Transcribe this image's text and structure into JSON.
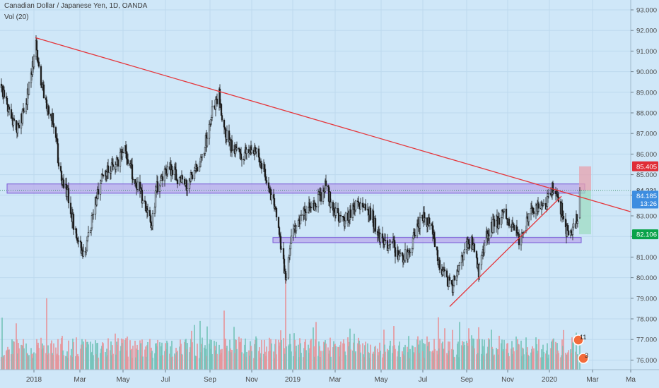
{
  "header": {
    "symbol_title": "Canadian Dollar / Japanese Yen, 1D, OANDA",
    "volume_label": "Vol (20)"
  },
  "colors": {
    "background": "#cfe7f8",
    "grid": "#bdd9ee",
    "up_candle": "#c9dff0",
    "down_candle": "#1a1a1a",
    "vol_up": "#74c3b9",
    "vol_down": "#e7959a",
    "trendline": "#e5363b",
    "zone_fill": "#b8a6ea",
    "zone_stroke": "#7a5bd6",
    "stop_zone": "#e7a2ae",
    "target_zone": "#9fdcc3",
    "price_tag_red": "#e02d36",
    "price_tag_blue": "#3d8de0",
    "price_tag_green": "#0aa34a"
  },
  "chart_data": {
    "type": "candlestick",
    "x_axis_labels": [
      "2018",
      "Mar",
      "May",
      "Jul",
      "Sep",
      "Nov",
      "2019",
      "Mar",
      "May",
      "Jul",
      "Sep",
      "Nov",
      "2020",
      "Mar",
      "Ma"
    ],
    "y_axis_labels": [
      "93.000",
      "92.000",
      "91.000",
      "90.000",
      "89.000",
      "88.000",
      "87.000",
      "86.000",
      "85.000",
      "84.000",
      "83.000",
      "82.000",
      "81.000",
      "80.000",
      "79.000",
      "78.000",
      "77.000",
      "76.000"
    ],
    "ylim": [
      75.35,
      93.2
    ],
    "x_range": [
      "2017-11-25",
      "2020-05-05"
    ],
    "price_path": [
      [
        "2017-11-25",
        89.4
      ],
      [
        "2017-12-08",
        88.0
      ],
      [
        "2017-12-20",
        87.2
      ],
      [
        "2018-01-01",
        88.5
      ],
      [
        "2018-01-10",
        90.3
      ],
      [
        "2018-01-15",
        91.3
      ],
      [
        "2018-01-22",
        89.6
      ],
      [
        "2018-01-30",
        88.5
      ],
      [
        "2018-02-08",
        87.6
      ],
      [
        "2018-02-18",
        85.2
      ],
      [
        "2018-03-01",
        84.0
      ],
      [
        "2018-03-10",
        82.5
      ],
      [
        "2018-03-20",
        81.5
      ],
      [
        "2018-03-26",
        81.1
      ],
      [
        "2018-04-02",
        82.5
      ],
      [
        "2018-04-10",
        83.8
      ],
      [
        "2018-04-20",
        85.2
      ],
      [
        "2018-05-01",
        85.4
      ],
      [
        "2018-05-12",
        85.6
      ],
      [
        "2018-05-22",
        86.2
      ],
      [
        "2018-06-01",
        85.0
      ],
      [
        "2018-06-10",
        84.2
      ],
      [
        "2018-06-20",
        83.4
      ],
      [
        "2018-06-27",
        82.4
      ],
      [
        "2018-07-05",
        84.4
      ],
      [
        "2018-07-15",
        85.0
      ],
      [
        "2018-07-25",
        85.3
      ],
      [
        "2018-08-05",
        84.8
      ],
      [
        "2018-08-15",
        84.5
      ],
      [
        "2018-08-25",
        85.2
      ],
      [
        "2018-09-05",
        85.6
      ],
      [
        "2018-09-15",
        87.0
      ],
      [
        "2018-09-22",
        88.3
      ],
      [
        "2018-10-01",
        88.9
      ],
      [
        "2018-10-08",
        87.1
      ],
      [
        "2018-10-20",
        86.3
      ],
      [
        "2018-11-01",
        85.9
      ],
      [
        "2018-11-10",
        86.3
      ],
      [
        "2018-11-20",
        86.2
      ],
      [
        "2018-12-01",
        85.4
      ],
      [
        "2018-12-10",
        84.5
      ],
      [
        "2018-12-20",
        83.1
      ],
      [
        "2018-12-28",
        81.4
      ],
      [
        "2019-01-03",
        79.9
      ],
      [
        "2019-01-10",
        81.6
      ],
      [
        "2019-01-20",
        82.8
      ],
      [
        "2019-02-01",
        83.2
      ],
      [
        "2019-02-15",
        83.6
      ],
      [
        "2019-03-01",
        84.5
      ],
      [
        "2019-03-10",
        83.4
      ],
      [
        "2019-03-25",
        82.7
      ],
      [
        "2019-04-10",
        83.5
      ],
      [
        "2019-04-25",
        83.7
      ],
      [
        "2019-05-05",
        83.0
      ],
      [
        "2019-05-15",
        82.0
      ],
      [
        "2019-05-25",
        81.4
      ],
      [
        "2019-06-05",
        81.5
      ],
      [
        "2019-06-15",
        80.8
      ],
      [
        "2019-06-25",
        81.3
      ],
      [
        "2019-07-05",
        82.0
      ],
      [
        "2019-07-15",
        82.9
      ],
      [
        "2019-07-25",
        82.7
      ],
      [
        "2019-08-01",
        82.0
      ],
      [
        "2019-08-07",
        80.6
      ],
      [
        "2019-08-15",
        80.2
      ],
      [
        "2019-08-26",
        79.4
      ],
      [
        "2019-09-05",
        80.5
      ],
      [
        "2019-09-15",
        81.5
      ],
      [
        "2019-09-25",
        81.7
      ],
      [
        "2019-10-03",
        80.3
      ],
      [
        "2019-10-12",
        81.9
      ],
      [
        "2019-10-22",
        82.5
      ],
      [
        "2019-11-01",
        82.8
      ],
      [
        "2019-11-10",
        83.1
      ],
      [
        "2019-11-20",
        82.5
      ],
      [
        "2019-12-01",
        81.8
      ],
      [
        "2019-12-10",
        82.6
      ],
      [
        "2019-12-20",
        83.3
      ],
      [
        "2020-01-01",
        83.4
      ],
      [
        "2020-01-10",
        83.8
      ],
      [
        "2020-01-17",
        84.5
      ],
      [
        "2020-01-25",
        83.7
      ],
      [
        "2020-02-01",
        82.7
      ],
      [
        "2020-02-08",
        81.8
      ],
      [
        "2020-02-14",
        82.4
      ],
      [
        "2020-02-20",
        83.0
      ]
    ],
    "last_candle": {
      "date": "2020-02-23",
      "open": 82.9,
      "high": 84.4,
      "low": 82.85,
      "close": 84.231
    },
    "trendlines": [
      {
        "from": [
          "2018-01-14",
          91.65
        ],
        "to": [
          "2020-05-05",
          83.2
        ]
      },
      {
        "from": [
          "2019-08-23",
          78.6
        ],
        "to": [
          "2020-01-28",
          83.95
        ]
      }
    ],
    "zones": [
      {
        "from": "2017-12-05",
        "to": "2020-03-01",
        "bottom": 84.1,
        "top": 84.55
      },
      {
        "from": "2018-12-16",
        "to": "2020-02-25",
        "bottom": 81.7,
        "top": 81.95
      }
    ],
    "position": {
      "from": "2020-02-22",
      "to": "2020-03-10",
      "entry": 84.231,
      "stop": 85.405,
      "target": 82.106
    },
    "price_tags": [
      {
        "price": 85.405,
        "label": "85.405",
        "color": "red"
      },
      {
        "price": 84.231,
        "label": "84.231",
        "color": "none"
      },
      {
        "price": 83.98,
        "label": "84.185",
        "color": "blue"
      },
      {
        "price": 83.6,
        "label": "13:26",
        "color": "blue"
      },
      {
        "price": 82.106,
        "label": "82.106",
        "color": "green"
      }
    ],
    "volume": {
      "seed": 7,
      "spikes": [
        [
          "2019-01-03",
          1.0
        ],
        [
          "2018-01-30",
          0.75
        ],
        [
          "2018-10-08",
          0.62
        ],
        [
          "2019-08-07",
          0.55
        ],
        [
          "2019-03-10",
          0.5
        ]
      ]
    },
    "event_badges": [
      {
        "date": "2020-02-15",
        "label": "11"
      },
      {
        "date": "2020-02-22",
        "label": "3"
      }
    ]
  }
}
